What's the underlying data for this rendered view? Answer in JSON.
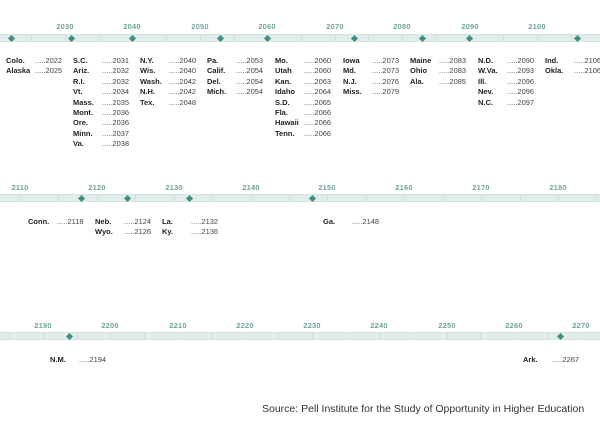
{
  "chart_data": {
    "type": "timeline",
    "title": "",
    "rows": [
      {
        "ticks": [
          2030,
          2040,
          2050,
          2060,
          2070,
          2080,
          2090,
          2100
        ],
        "groups": [
          {
            "entries": [
              {
                "state": "Colo.",
                "year": 2022
              },
              {
                "state": "Alaska",
                "year": 2025
              }
            ]
          },
          {
            "entries": [
              {
                "state": "S.C.",
                "year": 2031
              },
              {
                "state": "Ariz.",
                "year": 2032
              },
              {
                "state": "R.I.",
                "year": 2032
              },
              {
                "state": "Vt.",
                "year": 2034
              },
              {
                "state": "Mass.",
                "year": 2035
              },
              {
                "state": "Mont.",
                "year": 2036
              },
              {
                "state": "Ore.",
                "year": 2036
              },
              {
                "state": "Minn.",
                "year": 2037
              },
              {
                "state": "Va.",
                "year": 2038
              }
            ]
          },
          {
            "entries": [
              {
                "state": "N.Y.",
                "year": 2040
              },
              {
                "state": "Wis.",
                "year": 2040
              },
              {
                "state": "Wash.",
                "year": 2042
              },
              {
                "state": "N.H.",
                "year": 2042
              },
              {
                "state": "Tex.",
                "year": 2048
              }
            ]
          },
          {
            "entries": [
              {
                "state": "Pa.",
                "year": 2053
              },
              {
                "state": "Calif.",
                "year": 2054
              },
              {
                "state": "Del.",
                "year": 2054
              },
              {
                "state": "Mich.",
                "year": 2054
              }
            ]
          },
          {
            "entries": [
              {
                "state": "Mo.",
                "year": 2060
              },
              {
                "state": "Utah",
                "year": 2060
              },
              {
                "state": "Kan.",
                "year": 2063
              },
              {
                "state": "Idaho",
                "year": 2064
              },
              {
                "state": "S.D.",
                "year": 2065
              },
              {
                "state": "Fla.",
                "year": 2066
              },
              {
                "state": "Hawaii",
                "year": 2066
              },
              {
                "state": "Tenn.",
                "year": 2066
              }
            ]
          },
          {
            "entries": [
              {
                "state": "Iowa",
                "year": 2073
              },
              {
                "state": "Md.",
                "year": 2073
              },
              {
                "state": "N.J.",
                "year": 2076
              },
              {
                "state": "Miss.",
                "year": 2079
              }
            ]
          },
          {
            "entries": [
              {
                "state": "Maine",
                "year": 2083
              },
              {
                "state": "Ohio",
                "year": 2083
              },
              {
                "state": "Ala.",
                "year": 2085
              }
            ]
          },
          {
            "entries": [
              {
                "state": "N.D.",
                "year": 2090
              },
              {
                "state": "W.Va.",
                "year": 2093
              },
              {
                "state": "Ill.",
                "year": 2096
              },
              {
                "state": "Nev.",
                "year": 2096
              },
              {
                "state": "N.C.",
                "year": 2097
              }
            ]
          },
          {
            "entries": [
              {
                "state": "Ind.",
                "year": 2106
              },
              {
                "state": "Okla.",
                "year": 2106
              }
            ]
          }
        ]
      },
      {
        "ticks": [
          2110,
          2120,
          2130,
          2140,
          2150,
          2160,
          2170,
          2180
        ],
        "groups": [
          {
            "entries": [
              {
                "state": "Conn.",
                "year": 2118
              }
            ]
          },
          {
            "entries": [
              {
                "state": "Neb.",
                "year": 2124
              },
              {
                "state": "Wyo.",
                "year": 2126
              }
            ]
          },
          {
            "entries": [
              {
                "state": "La.",
                "year": 2132
              },
              {
                "state": "Ky.",
                "year": 2136
              }
            ]
          },
          {
            "entries": [
              {
                "state": "Ga.",
                "year": 2148
              }
            ]
          }
        ]
      },
      {
        "ticks": [
          2190,
          2200,
          2210,
          2220,
          2230,
          2240,
          2250,
          2260,
          2270
        ],
        "groups": [
          {
            "entries": [
              {
                "state": "N.M.",
                "year": 2194
              }
            ]
          },
          {
            "entries": [
              {
                "state": "Ark.",
                "year": 2267
              }
            ]
          }
        ]
      }
    ]
  },
  "source": "Source: Pell Institute for the Study of Opportunity in Higher Education"
}
